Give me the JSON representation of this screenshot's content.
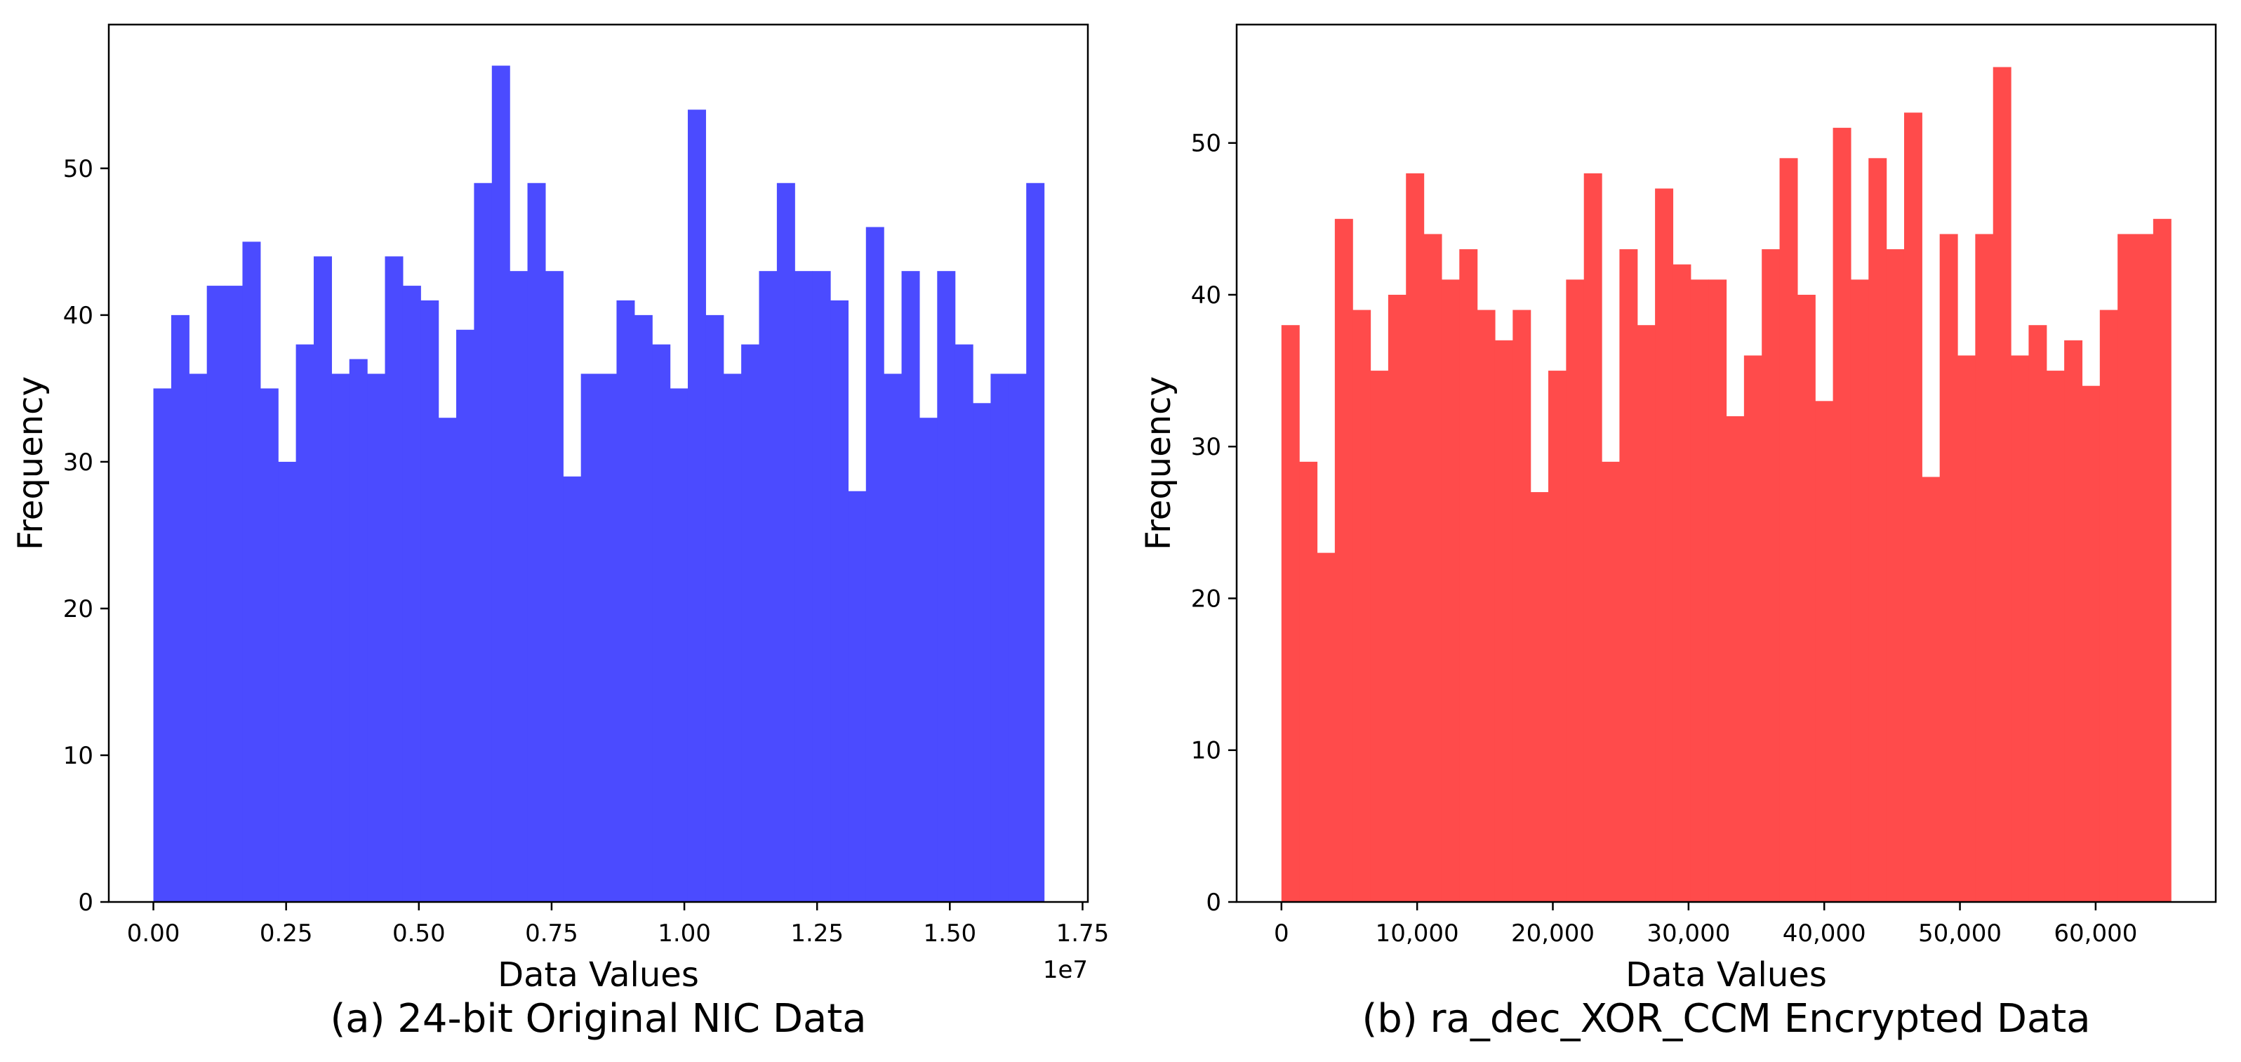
{
  "chart_data": [
    {
      "type": "bar",
      "subtype": "histogram",
      "caption": "(a) 24-bit Original NIC Data",
      "xlabel": "Data Values",
      "ylabel": "Frequency",
      "x_offset_label": "1e7",
      "color": "#4b4bff",
      "xlim": [
        -0.084,
        1.76
      ],
      "ylim": [
        0,
        59.8
      ],
      "bin_start": 0.0,
      "bin_width": 0.03355,
      "xticks": [
        0.0,
        0.25,
        0.5,
        0.75,
        1.0,
        1.25,
        1.5,
        1.75
      ],
      "xtick_labels": [
        "0.00",
        "0.25",
        "0.50",
        "0.75",
        "1.00",
        "1.25",
        "1.50",
        "1.75"
      ],
      "yticks": [
        0,
        10,
        20,
        30,
        40,
        50
      ],
      "ytick_labels": [
        "0",
        "10",
        "20",
        "30",
        "40",
        "50"
      ],
      "values": [
        35,
        40,
        36,
        42,
        42,
        45,
        35,
        30,
        38,
        44,
        36,
        37,
        36,
        44,
        42,
        41,
        33,
        39,
        49,
        57,
        43,
        49,
        43,
        29,
        36,
        36,
        41,
        40,
        38,
        35,
        54,
        40,
        36,
        38,
        43,
        49,
        43,
        43,
        41,
        28,
        46,
        36,
        43,
        33,
        43,
        38,
        34,
        36,
        36,
        49
      ]
    },
    {
      "type": "bar",
      "subtype": "histogram",
      "caption": "(b) ra_dec_XOR_CCM Encrypted Data",
      "xlabel": "Data Values",
      "ylabel": "Frequency",
      "color": "#ff4b4b",
      "xlim": [
        -3300,
        68850
      ],
      "ylim": [
        0,
        57.8
      ],
      "bin_start": 0,
      "bin_width": 1311,
      "xticks": [
        0,
        10000,
        20000,
        30000,
        40000,
        50000,
        60000
      ],
      "xtick_labels": [
        "0",
        "10,000",
        "20,000",
        "30,000",
        "40,000",
        "50,000",
        "60,000"
      ],
      "yticks": [
        0,
        10,
        20,
        30,
        40,
        50
      ],
      "ytick_labels": [
        "0",
        "10",
        "20",
        "30",
        "40",
        "50"
      ],
      "values": [
        38,
        29,
        23,
        45,
        39,
        35,
        40,
        48,
        44,
        41,
        43,
        39,
        37,
        39,
        27,
        35,
        41,
        48,
        29,
        43,
        38,
        47,
        42,
        41,
        41,
        32,
        36,
        43,
        49,
        40,
        33,
        51,
        41,
        49,
        43,
        52,
        28,
        44,
        36,
        44,
        55,
        36,
        38,
        35,
        37,
        34,
        39,
        44,
        44,
        45
      ]
    }
  ]
}
